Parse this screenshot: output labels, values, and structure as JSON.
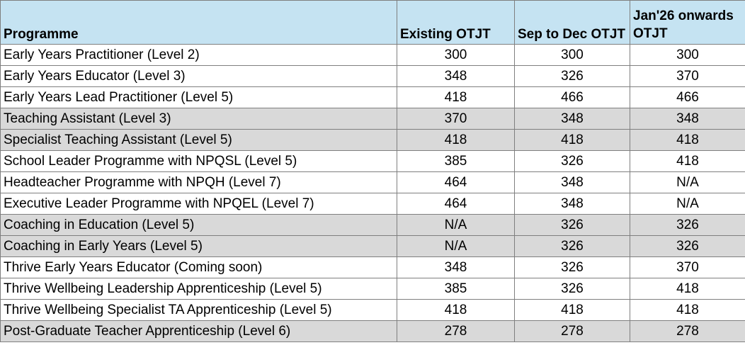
{
  "table": {
    "headers": [
      "Programme",
      "Existing OTJT",
      "Sep to Dec OTJT",
      "Jan'26 onwards OTJT"
    ],
    "rows": [
      {
        "programme": "Early Years Practitioner (Level 2)",
        "existing": "300",
        "sep_dec": "300",
        "jan26": "300",
        "shaded": false
      },
      {
        "programme": "Early Years Educator (Level 3)",
        "existing": "348",
        "sep_dec": "326",
        "jan26": "370",
        "shaded": false
      },
      {
        "programme": "Early Years Lead Practitioner (Level 5)",
        "existing": "418",
        "sep_dec": "466",
        "jan26": "466",
        "shaded": false
      },
      {
        "programme": "Teaching Assistant (Level 3)",
        "existing": "370",
        "sep_dec": "348",
        "jan26": "348",
        "shaded": true
      },
      {
        "programme": "Specialist Teaching Assistant (Level 5)",
        "existing": "418",
        "sep_dec": "418",
        "jan26": "418",
        "shaded": true
      },
      {
        "programme": "School Leader Programme with NPQSL (Level 5)",
        "existing": "385",
        "sep_dec": "326",
        "jan26": "418",
        "shaded": false
      },
      {
        "programme": "Headteacher Programme with NPQH (Level 7)",
        "existing": "464",
        "sep_dec": "348",
        "jan26": "N/A",
        "shaded": false
      },
      {
        "programme": "Executive Leader Programme with NPQEL (Level 7)",
        "existing": "464",
        "sep_dec": "348",
        "jan26": "N/A",
        "shaded": false
      },
      {
        "programme": "Coaching in Education (Level 5)",
        "existing": "N/A",
        "sep_dec": "326",
        "jan26": "326",
        "shaded": true
      },
      {
        "programme": "Coaching in Early Years (Level 5)",
        "existing": "N/A",
        "sep_dec": "326",
        "jan26": "326",
        "shaded": true
      },
      {
        "programme": "Thrive Early Years Educator (Coming soon)",
        "existing": "348",
        "sep_dec": "326",
        "jan26": "370",
        "shaded": false
      },
      {
        "programme": "Thrive Wellbeing Leadership Apprenticeship (Level 5)",
        "existing": "385",
        "sep_dec": "326",
        "jan26": "418",
        "shaded": false
      },
      {
        "programme": "Thrive Wellbeing Specialist TA Apprenticeship (Level 5)",
        "existing": "418",
        "sep_dec": "418",
        "jan26": "418",
        "shaded": false
      },
      {
        "programme": "Post-Graduate Teacher Apprenticeship (Level 6)",
        "existing": "278",
        "sep_dec": "278",
        "jan26": "278",
        "shaded": true
      }
    ]
  },
  "colors": {
    "header_bg": "#c5e3f2",
    "shaded_row_bg": "#d9d9d9",
    "grid": "#7f7f7f"
  }
}
